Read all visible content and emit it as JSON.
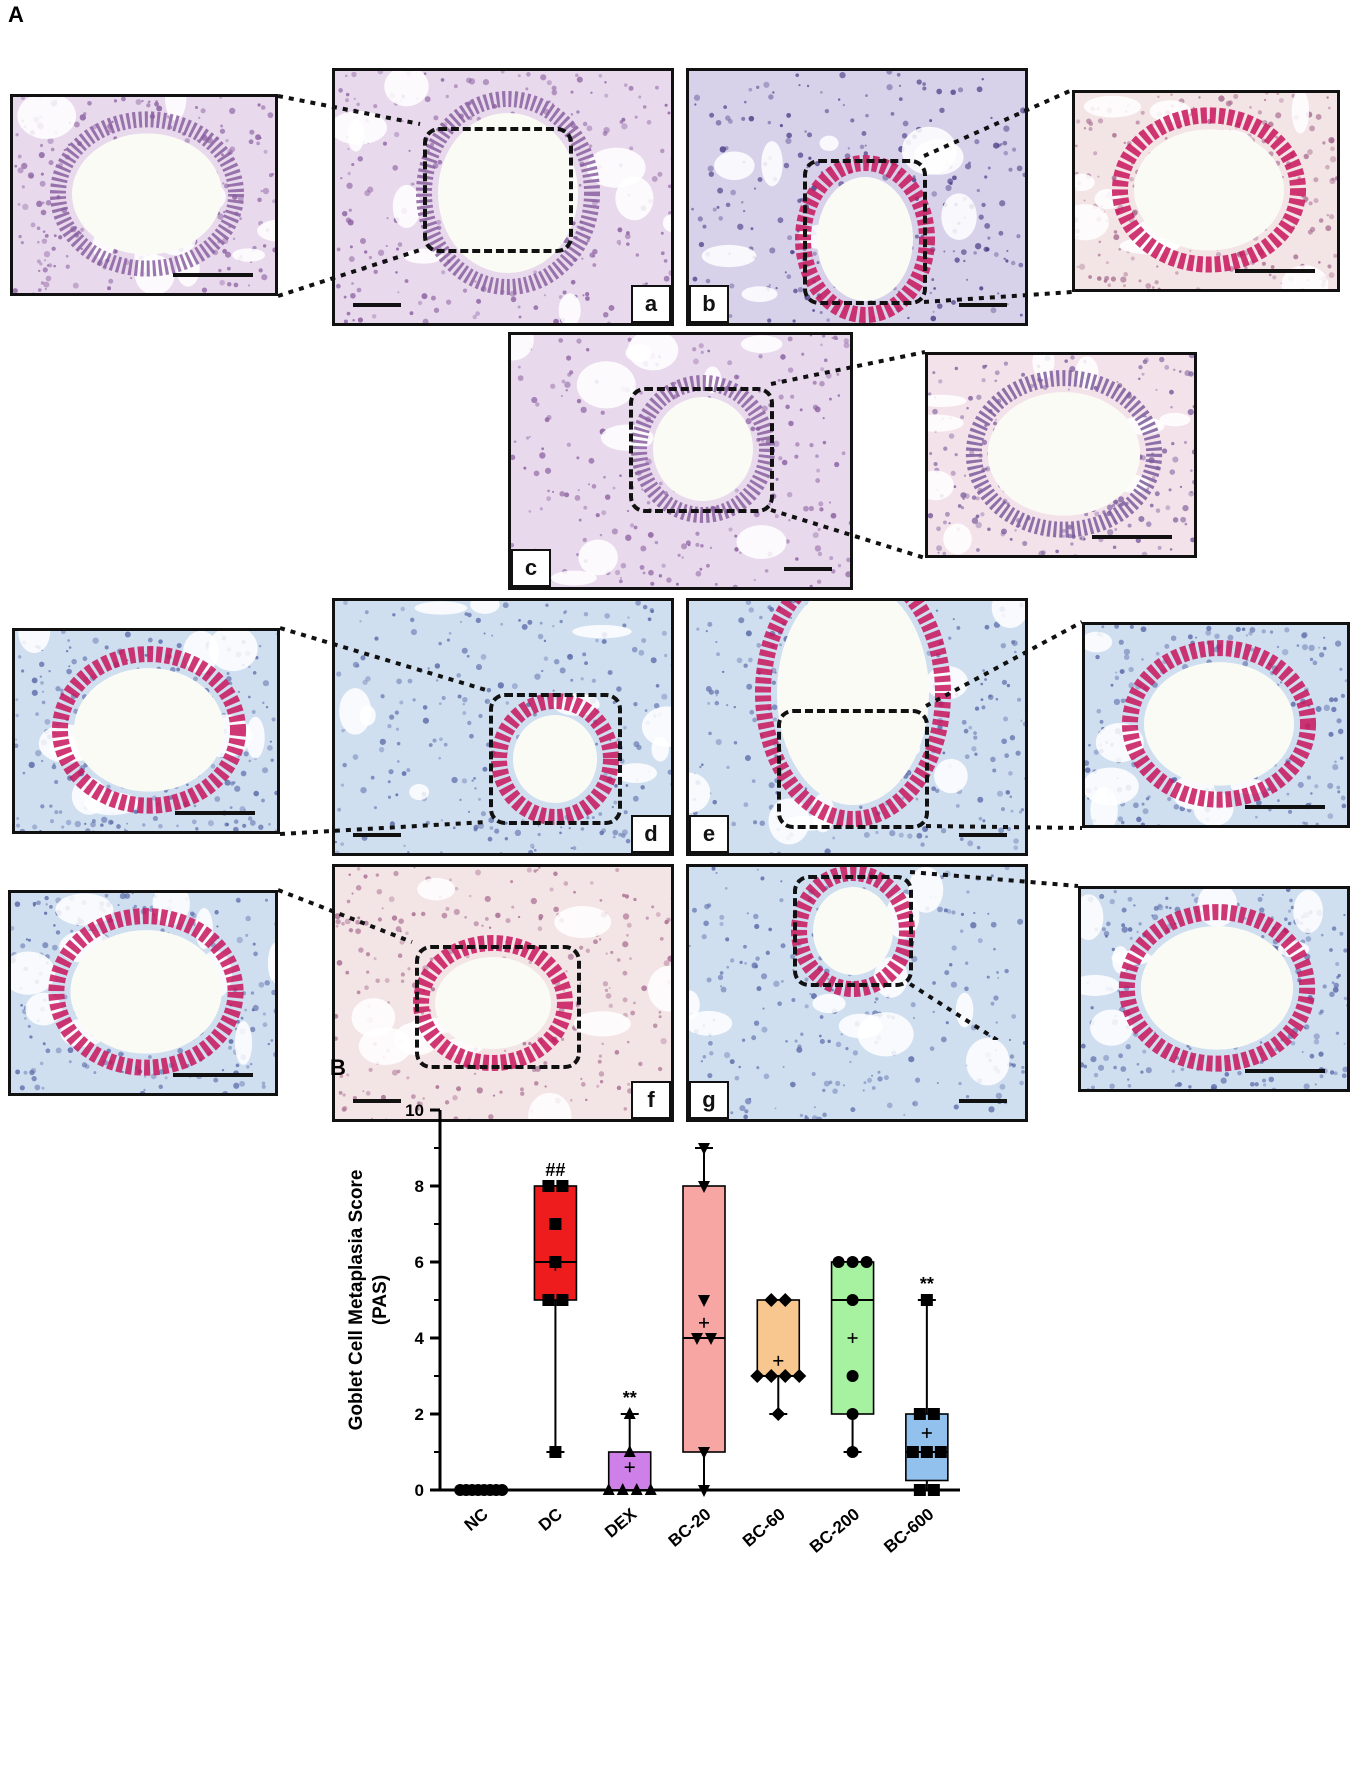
{
  "panel_A": {
    "letter": "A",
    "subpanels": [
      "a",
      "b",
      "c",
      "d",
      "e",
      "f",
      "g"
    ]
  },
  "panel_B": {
    "letter": "B"
  },
  "chart_data": {
    "type": "box",
    "title": "",
    "ylabel": "Goblet Cell Metaplasia Score (PAS)",
    "ylabel_lines": [
      "Goblet Cell Metaplasia Score",
      "(PAS)"
    ],
    "xlabel": "",
    "ylim": [
      0,
      10
    ],
    "yticks": [
      "0",
      "2",
      "4",
      "6",
      "8",
      "10"
    ],
    "categories": [
      "NC",
      "DC",
      "DEX",
      "BC-20",
      "BC-60",
      "BC-200",
      "BC-600"
    ],
    "groups": [
      {
        "name": "NC",
        "min": 0,
        "q1": 0,
        "median": 0,
        "q3": 0,
        "max": 0,
        "mean": 0,
        "points": [
          0,
          0,
          0,
          0,
          0,
          0,
          0,
          0
        ],
        "marker": "circle",
        "color": "#ffffff",
        "annotation": ""
      },
      {
        "name": "DC",
        "min": 1,
        "q1": 5,
        "median": 6,
        "q3": 8,
        "max": 8,
        "mean": 5.9,
        "points": [
          8,
          8,
          7,
          6,
          5,
          5,
          1
        ],
        "marker": "square",
        "color": "#ee1c1c",
        "annotation": "##"
      },
      {
        "name": "DEX",
        "min": 0,
        "q1": 0,
        "median": 0,
        "q3": 1,
        "max": 2,
        "mean": 0.6,
        "points": [
          2,
          1,
          0,
          0,
          0,
          0
        ],
        "marker": "triangle-up",
        "color": "#cf7fe8",
        "annotation": "**"
      },
      {
        "name": "BC-20",
        "min": 0,
        "q1": 1,
        "median": 4,
        "q3": 8,
        "max": 9,
        "mean": 4.4,
        "points": [
          9,
          8,
          5,
          4,
          4,
          1,
          0
        ],
        "marker": "triangle-down",
        "color": "#f7a6a3",
        "annotation": ""
      },
      {
        "name": "BC-60",
        "min": 2,
        "q1": 3,
        "median": 3,
        "q3": 5,
        "max": 5,
        "mean": 3.4,
        "points": [
          5,
          5,
          3,
          3,
          3,
          3,
          2
        ],
        "marker": "diamond",
        "color": "#f8c68f",
        "annotation": ""
      },
      {
        "name": "BC-200",
        "min": 1,
        "q1": 2,
        "median": 5,
        "q3": 6,
        "max": 6,
        "mean": 4.0,
        "points": [
          6,
          6,
          6,
          5,
          3,
          2,
          1
        ],
        "marker": "circle",
        "color": "#a6f2a0",
        "annotation": ""
      },
      {
        "name": "BC-600",
        "min": 0,
        "q1": 0.25,
        "median": 1,
        "q3": 2,
        "max": 5,
        "mean": 1.5,
        "points": [
          5,
          2,
          2,
          1,
          1,
          1,
          0,
          0
        ],
        "marker": "square",
        "color": "#93c1ee",
        "annotation": "**"
      }
    ],
    "grid": false,
    "legend": "none"
  }
}
